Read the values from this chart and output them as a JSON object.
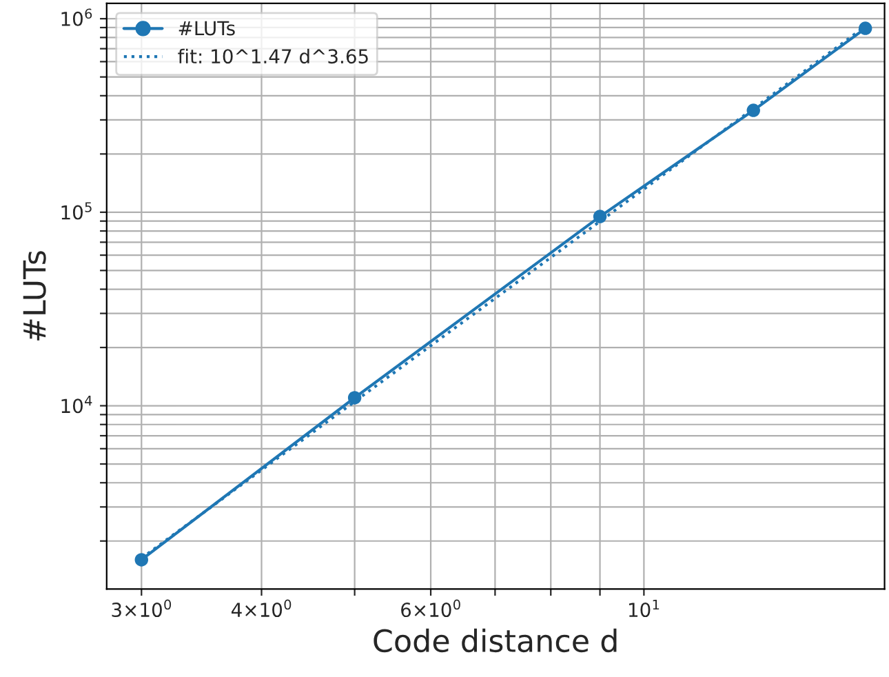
{
  "chart_data": {
    "type": "line",
    "xlabel": "Code distance d",
    "ylabel": "#LUTs",
    "log": "xy",
    "grid": true,
    "legend": "top left",
    "xlim": [
      2.76,
      17.8
    ],
    "ylim": [
      1130,
      1200000
    ],
    "xticks": [
      {
        "value": 3,
        "label": "3×10$^{0}$"
      },
      {
        "value": 4,
        "label": "4×10$^{0}$"
      },
      {
        "value": 5,
        "label": null
      },
      {
        "value": 6,
        "label": "6×10$^{0}$"
      },
      {
        "value": 7,
        "label": null
      },
      {
        "value": 8,
        "label": null
      },
      {
        "value": 9,
        "label": null
      },
      {
        "value": 10,
        "label": "10$^{1}$"
      }
    ],
    "yticks": [
      {
        "value": 2000,
        "label": null
      },
      {
        "value": 3000,
        "label": null
      },
      {
        "value": 4000,
        "label": null
      },
      {
        "value": 5000,
        "label": null
      },
      {
        "value": 6000,
        "label": null
      },
      {
        "value": 7000,
        "label": null
      },
      {
        "value": 8000,
        "label": null
      },
      {
        "value": 9000,
        "label": null
      },
      {
        "value": 10000,
        "label": "10$^{4}$"
      },
      {
        "value": 20000,
        "label": null
      },
      {
        "value": 30000,
        "label": null
      },
      {
        "value": 40000,
        "label": null
      },
      {
        "value": 50000,
        "label": null
      },
      {
        "value": 60000,
        "label": null
      },
      {
        "value": 70000,
        "label": null
      },
      {
        "value": 80000,
        "label": null
      },
      {
        "value": 90000,
        "label": null
      },
      {
        "value": 100000,
        "label": "10$^{5}$"
      },
      {
        "value": 200000,
        "label": null
      },
      {
        "value": 300000,
        "label": null
      },
      {
        "value": 400000,
        "label": null
      },
      {
        "value": 500000,
        "label": null
      },
      {
        "value": 600000,
        "label": null
      },
      {
        "value": 700000,
        "label": null
      },
      {
        "value": 800000,
        "label": null
      },
      {
        "value": 900000,
        "label": null
      },
      {
        "value": 1000000,
        "label": "10$^{6}$"
      }
    ],
    "series": [
      {
        "name": "#LUTs",
        "color": "#1f77b4",
        "marker": "circle",
        "line_style": "solid",
        "x": [
          3,
          5,
          9,
          13,
          17
        ],
        "values": [
          1600,
          11000,
          95000,
          336000,
          892000
        ]
      },
      {
        "name": "fit: 10^1.47 d^3.65",
        "color": "#1f77b4",
        "marker": "none",
        "line_style": "dotted",
        "x": [
          3,
          17
        ],
        "values": [
          1630,
          913000
        ]
      }
    ]
  }
}
